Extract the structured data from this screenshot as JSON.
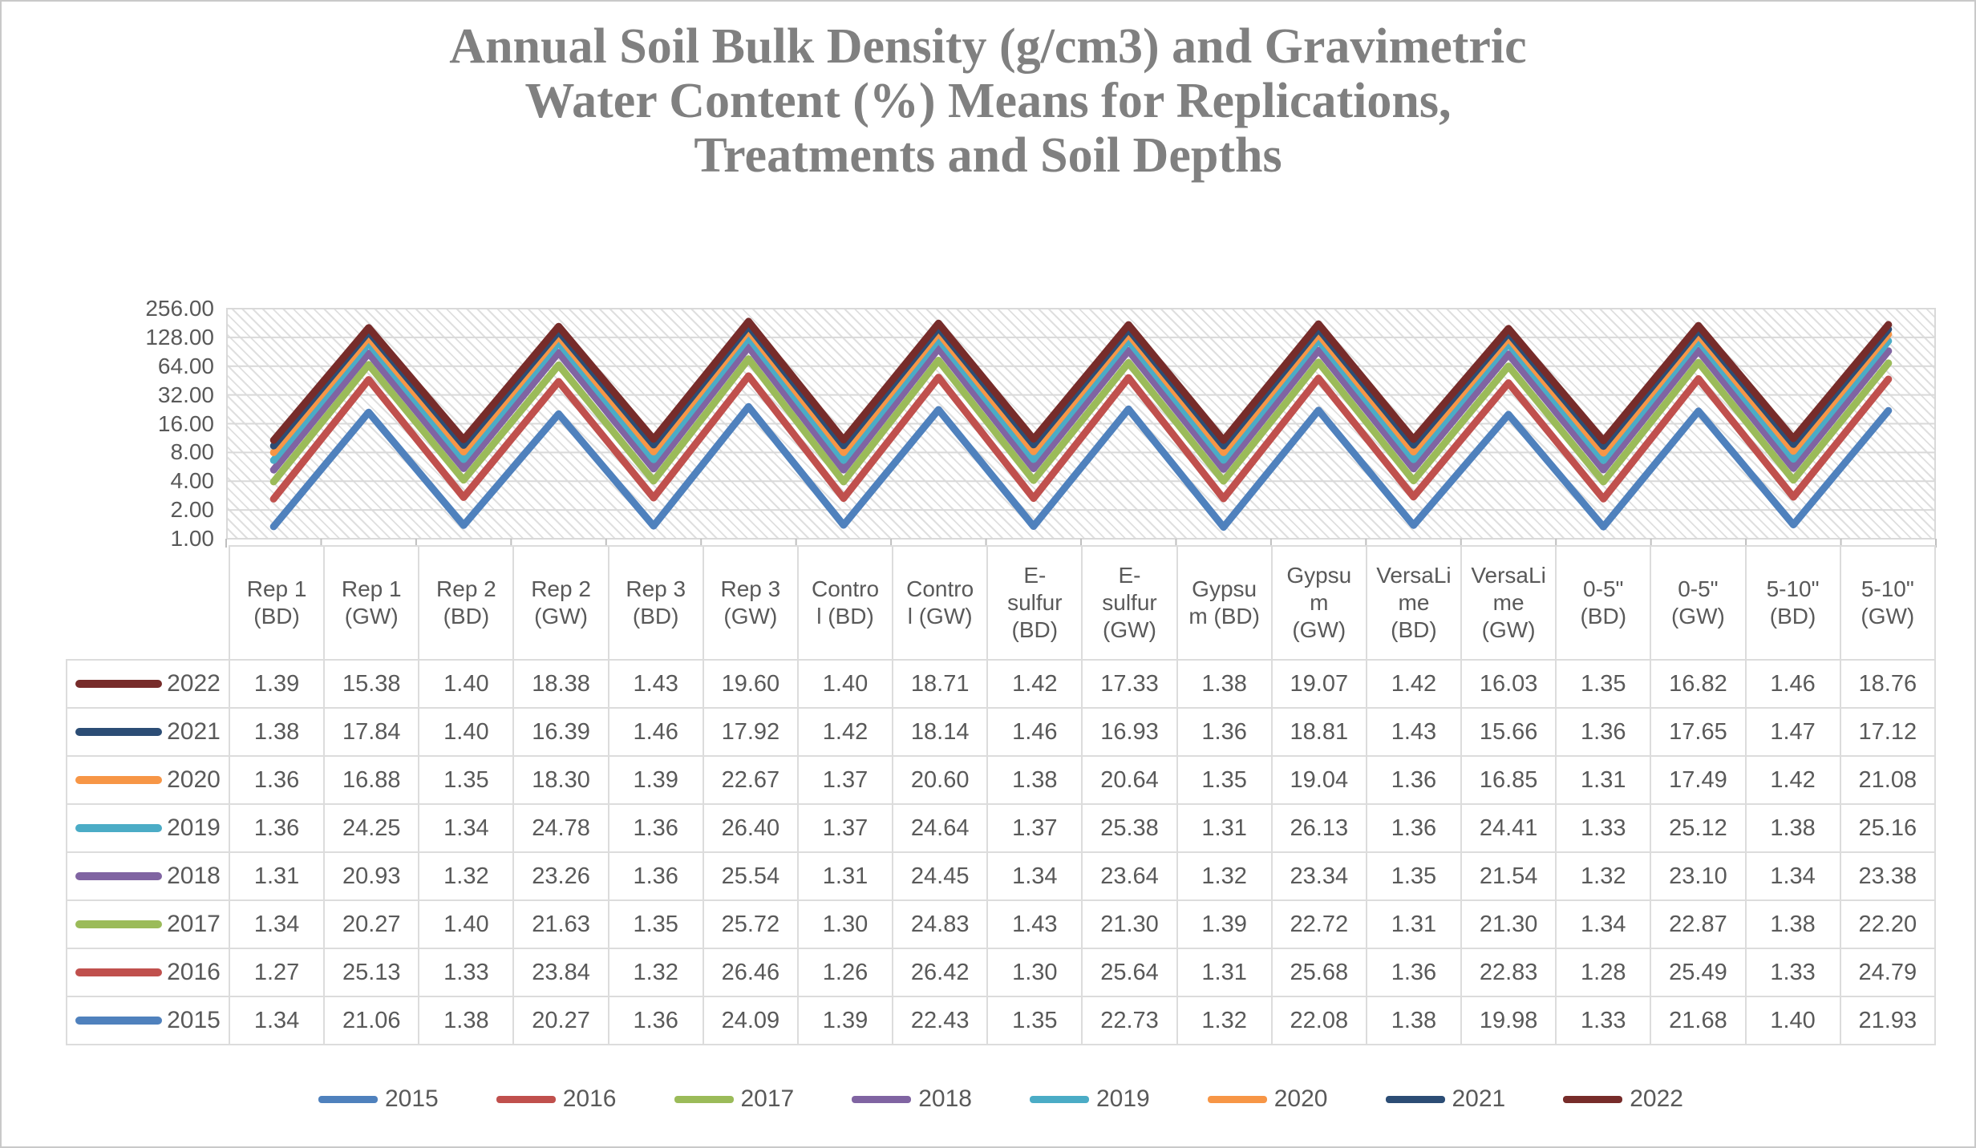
{
  "chart_title": {
    "lines": [
      "Annual Soil Bulk Density (g/cm3) and Gravimetric",
      "Water Content (%) Means for Replications,",
      "Treatments and Soil Depths"
    ],
    "color": "#808080"
  },
  "chart_data": {
    "type": "line",
    "stacking": "stacked",
    "y_scale": "log2",
    "y_min": 1,
    "y_max": 256,
    "y_ticks": [
      "256.00",
      "128.00",
      "64.00",
      "32.00",
      "16.00",
      "8.00",
      "4.00",
      "2.00",
      "1.00"
    ],
    "grid": true,
    "plot_background": "diagonal-hatch",
    "legend_position": "bottom",
    "categories": [
      "Rep 1 (BD)",
      "Rep 1 (GW)",
      "Rep 2 (BD)",
      "Rep 2 (GW)",
      "Rep 3 (BD)",
      "Rep 3 (GW)",
      "Control (BD)",
      "Control (GW)",
      "E-sulfur (BD)",
      "E-sulfur (GW)",
      "Gypsum (BD)",
      "Gypsum (GW)",
      "VersaLime (BD)",
      "VersaLime (GW)",
      "0-5\" (BD)",
      "0-5\" (GW)",
      "5-10\" (BD)",
      "5-10\" (GW)"
    ],
    "categories_display": [
      [
        "Rep 1",
        "(BD)"
      ],
      [
        "Rep 1",
        "(GW)"
      ],
      [
        "Rep 2",
        "(BD)"
      ],
      [
        "Rep 2",
        "(GW)"
      ],
      [
        "Rep 3",
        "(BD)"
      ],
      [
        "Rep 3",
        "(GW)"
      ],
      [
        "Contro",
        "l (BD)"
      ],
      [
        "Contro",
        "l (GW)"
      ],
      [
        "E-",
        "sulfur",
        "(BD)"
      ],
      [
        "E-",
        "sulfur",
        "(GW)"
      ],
      [
        "Gypsu",
        "m (BD)"
      ],
      [
        "Gypsu",
        "m",
        "(GW)"
      ],
      [
        "VersaLi",
        "me",
        "(BD)"
      ],
      [
        "VersaLi",
        "me",
        "(GW)"
      ],
      [
        "0-5\"",
        "(BD)"
      ],
      [
        "0-5\"",
        "(GW)"
      ],
      [
        "5-10\"",
        "(BD)"
      ],
      [
        "5-10\"",
        "(GW)"
      ]
    ],
    "series": [
      {
        "name": "2015",
        "color": "#4F81BD",
        "values": [
          1.34,
          21.06,
          1.38,
          20.27,
          1.36,
          24.09,
          1.39,
          22.43,
          1.35,
          22.73,
          1.32,
          22.08,
          1.38,
          19.98,
          1.33,
          21.68,
          1.4,
          21.93
        ]
      },
      {
        "name": "2016",
        "color": "#C0504D",
        "values": [
          1.27,
          25.13,
          1.33,
          23.84,
          1.32,
          26.46,
          1.26,
          26.42,
          1.3,
          25.64,
          1.31,
          25.68,
          1.36,
          22.83,
          1.28,
          25.49,
          1.33,
          24.79
        ]
      },
      {
        "name": "2017",
        "color": "#9BBB59",
        "values": [
          1.34,
          20.27,
          1.4,
          21.63,
          1.35,
          25.72,
          1.3,
          24.83,
          1.43,
          21.3,
          1.39,
          22.72,
          1.31,
          21.3,
          1.34,
          22.87,
          1.38,
          22.2
        ]
      },
      {
        "name": "2018",
        "color": "#8064A2",
        "values": [
          1.31,
          20.93,
          1.32,
          23.26,
          1.36,
          25.54,
          1.31,
          24.45,
          1.34,
          23.64,
          1.32,
          23.34,
          1.35,
          21.54,
          1.32,
          23.1,
          1.34,
          23.38
        ]
      },
      {
        "name": "2019",
        "color": "#4BACC6",
        "values": [
          1.36,
          24.25,
          1.34,
          24.78,
          1.36,
          26.4,
          1.37,
          24.64,
          1.37,
          25.38,
          1.31,
          26.13,
          1.36,
          24.41,
          1.33,
          25.12,
          1.38,
          25.16
        ]
      },
      {
        "name": "2020",
        "color": "#F79646",
        "values": [
          1.36,
          16.88,
          1.35,
          18.3,
          1.39,
          22.67,
          1.37,
          20.6,
          1.38,
          20.64,
          1.35,
          19.04,
          1.36,
          16.85,
          1.31,
          17.49,
          1.42,
          21.08
        ]
      },
      {
        "name": "2021",
        "color": "#2C4D75",
        "values": [
          1.38,
          17.84,
          1.4,
          16.39,
          1.46,
          17.92,
          1.42,
          18.14,
          1.46,
          16.93,
          1.36,
          18.81,
          1.43,
          15.66,
          1.36,
          17.65,
          1.47,
          17.12
        ]
      },
      {
        "name": "2022",
        "color": "#772C2A",
        "values": [
          1.39,
          15.38,
          1.4,
          18.38,
          1.43,
          19.6,
          1.4,
          18.71,
          1.42,
          17.33,
          1.38,
          19.07,
          1.42,
          16.03,
          1.35,
          16.82,
          1.46,
          18.76
        ]
      }
    ]
  },
  "table": {
    "row_order": [
      "2022",
      "2021",
      "2020",
      "2019",
      "2018",
      "2017",
      "2016",
      "2015"
    ],
    "value_format": "0.00"
  },
  "legend": {
    "items": [
      "2015",
      "2016",
      "2017",
      "2018",
      "2019",
      "2020",
      "2021",
      "2022"
    ]
  }
}
